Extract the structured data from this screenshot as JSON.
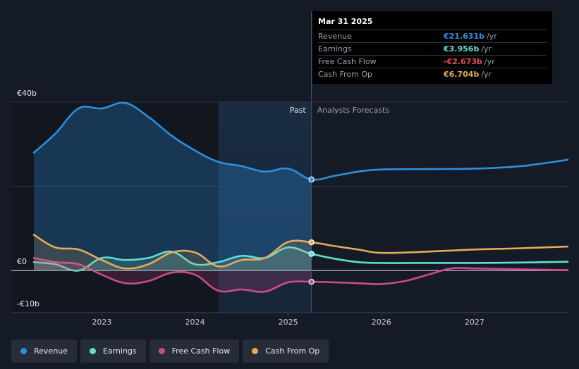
{
  "chart_data": {
    "type": "line",
    "currency": "€",
    "x_ticks": [
      "2023",
      "2024",
      "2025",
      "2026",
      "2027"
    ],
    "y_ticks": [
      {
        "value": 40,
        "label": "€40b"
      },
      {
        "value": 0,
        "label": "€0"
      },
      {
        "value": -10,
        "label": "-€10b"
      }
    ],
    "ylim": [
      -10,
      40
    ],
    "xlim": [
      2022.26,
      2028.0
    ],
    "past_label": "Past",
    "forecast_label": "Analysts Forecasts",
    "divider_x": 2025.25,
    "shade_start_x": 2024.25,
    "series": [
      {
        "name": "Revenue",
        "color": "#2b8fe0",
        "points": [
          [
            2022.27,
            28.0
          ],
          [
            2022.5,
            32.5
          ],
          [
            2022.75,
            38.5
          ],
          [
            2023.0,
            38.5
          ],
          [
            2023.25,
            39.8
          ],
          [
            2023.5,
            36.5
          ],
          [
            2023.75,
            32.0
          ],
          [
            2024.0,
            28.5
          ],
          [
            2024.25,
            25.8
          ],
          [
            2024.5,
            24.8
          ],
          [
            2024.75,
            23.5
          ],
          [
            2025.0,
            24.2
          ],
          [
            2025.25,
            21.631
          ],
          [
            2025.5,
            22.5
          ],
          [
            2025.75,
            23.5
          ],
          [
            2026.0,
            24.0
          ],
          [
            2026.5,
            24.1
          ],
          [
            2027.0,
            24.2
          ],
          [
            2027.5,
            24.8
          ],
          [
            2028.0,
            26.3
          ]
        ]
      },
      {
        "name": "Earnings",
        "color": "#5ce0d2",
        "points": [
          [
            2022.27,
            2.0
          ],
          [
            2022.5,
            1.5
          ],
          [
            2022.75,
            0.0
          ],
          [
            2023.0,
            3.0
          ],
          [
            2023.25,
            2.5
          ],
          [
            2023.5,
            3.0
          ],
          [
            2023.75,
            4.5
          ],
          [
            2024.0,
            1.5
          ],
          [
            2024.25,
            2.0
          ],
          [
            2024.5,
            3.5
          ],
          [
            2024.75,
            3.0
          ],
          [
            2025.0,
            5.5
          ],
          [
            2025.25,
            3.956
          ],
          [
            2025.5,
            2.8
          ],
          [
            2025.75,
            2.0
          ],
          [
            2026.0,
            1.8
          ],
          [
            2026.5,
            1.8
          ],
          [
            2027.0,
            1.8
          ],
          [
            2027.5,
            1.9
          ],
          [
            2028.0,
            2.1
          ]
        ]
      },
      {
        "name": "Free Cash Flow",
        "color": "#cc4a8c",
        "points": [
          [
            2022.27,
            3.0
          ],
          [
            2022.5,
            2.0
          ],
          [
            2022.75,
            1.5
          ],
          [
            2023.0,
            -1.0
          ],
          [
            2023.25,
            -3.0
          ],
          [
            2023.5,
            -2.5
          ],
          [
            2023.75,
            -0.5
          ],
          [
            2024.0,
            -1.0
          ],
          [
            2024.25,
            -4.8
          ],
          [
            2024.5,
            -4.5
          ],
          [
            2024.75,
            -5.0
          ],
          [
            2025.0,
            -2.8
          ],
          [
            2025.25,
            -2.673
          ],
          [
            2025.5,
            -2.8
          ],
          [
            2025.75,
            -3.0
          ],
          [
            2026.0,
            -3.2
          ],
          [
            2026.25,
            -2.5
          ],
          [
            2026.5,
            -1.0
          ],
          [
            2026.75,
            0.5
          ],
          [
            2027.0,
            0.5
          ],
          [
            2027.5,
            0.3
          ],
          [
            2028.0,
            0.1
          ]
        ]
      },
      {
        "name": "Cash From Op",
        "color": "#e8a95a",
        "points": [
          [
            2022.27,
            8.5
          ],
          [
            2022.5,
            5.5
          ],
          [
            2022.75,
            5.0
          ],
          [
            2023.0,
            2.5
          ],
          [
            2023.25,
            0.5
          ],
          [
            2023.5,
            1.5
          ],
          [
            2023.75,
            4.3
          ],
          [
            2024.0,
            4.3
          ],
          [
            2024.25,
            1.0
          ],
          [
            2024.5,
            2.5
          ],
          [
            2024.75,
            3.0
          ],
          [
            2025.0,
            6.8
          ],
          [
            2025.25,
            6.704
          ],
          [
            2025.5,
            5.8
          ],
          [
            2025.75,
            5.0
          ],
          [
            2026.0,
            4.2
          ],
          [
            2026.5,
            4.5
          ],
          [
            2027.0,
            5.0
          ],
          [
            2027.5,
            5.3
          ],
          [
            2028.0,
            5.7
          ]
        ]
      }
    ]
  },
  "tooltip": {
    "date": "Mar 31 2025",
    "unit": "/yr",
    "rows": [
      {
        "label": "Revenue",
        "value": "€21.631b",
        "color": "#2b8fe0"
      },
      {
        "label": "Earnings",
        "value": "€3.956b",
        "color": "#5ce0d2"
      },
      {
        "label": "Free Cash Flow",
        "value": "-€2.673b",
        "color": "#e84c4c"
      },
      {
        "label": "Cash From Op",
        "value": "€6.704b",
        "color": "#e8a95a"
      }
    ]
  },
  "legend": [
    {
      "label": "Revenue",
      "color": "#2b8fe0"
    },
    {
      "label": "Earnings",
      "color": "#5ce0d2"
    },
    {
      "label": "Free Cash Flow",
      "color": "#cc4a8c"
    },
    {
      "label": "Cash From Op",
      "color": "#e8a95a"
    }
  ]
}
